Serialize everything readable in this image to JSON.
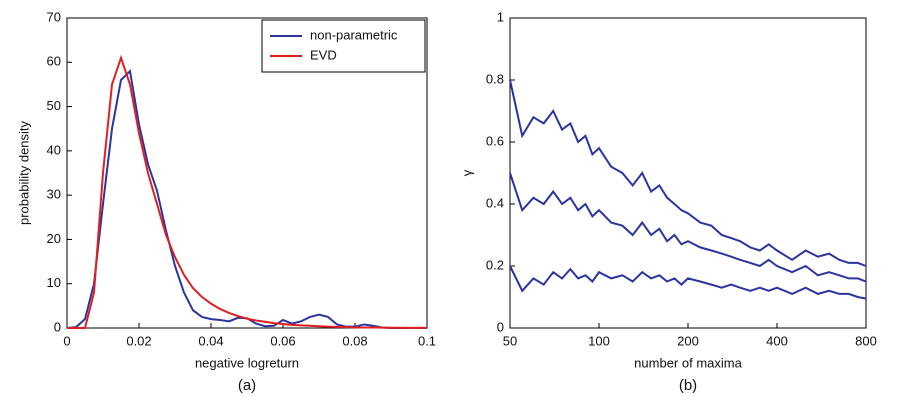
{
  "chart_data": [
    {
      "type": "line",
      "xlabel": "negative logreturn",
      "ylabel": "probability density",
      "caption": "(a)",
      "x": [
        0,
        0.0025,
        0.005,
        0.0075,
        0.01,
        0.0125,
        0.015,
        0.0175,
        0.02,
        0.0225,
        0.025,
        0.0275,
        0.03,
        0.0325,
        0.035,
        0.0375,
        0.04,
        0.0425,
        0.045,
        0.0475,
        0.05,
        0.0525,
        0.055,
        0.0575,
        0.06,
        0.0625,
        0.065,
        0.0675,
        0.07,
        0.0725,
        0.075,
        0.0775,
        0.08,
        0.0825,
        0.085,
        0.0875,
        0.09,
        0.0925,
        0.095,
        0.0975,
        0.1
      ],
      "series": [
        {
          "name": "non-parametric",
          "color": "#2b35a0",
          "values": [
            0,
            0.2,
            2,
            10,
            28,
            45,
            56,
            58,
            46,
            37,
            31,
            22,
            14,
            8,
            4,
            2.5,
            2,
            1.8,
            1.5,
            2.3,
            2.2,
            1,
            0.4,
            0.5,
            1.8,
            1,
            1.5,
            2.5,
            3,
            2.5,
            0.8,
            0.3,
            0.3,
            0.8,
            0.5,
            0.1,
            0,
            0,
            0,
            0,
            0
          ]
        },
        {
          "name": "EVD",
          "color": "#e02020",
          "values": [
            0,
            0,
            0,
            8,
            35,
            55,
            61,
            55,
            44,
            35,
            28,
            21,
            16,
            12,
            9,
            7,
            5.5,
            4.3,
            3.4,
            2.7,
            2.1,
            1.7,
            1.4,
            1.1,
            0.9,
            0.7,
            0.6,
            0.5,
            0.4,
            0.3,
            0.25,
            0.2,
            0.15,
            0.12,
            0.1,
            0.08,
            0.06,
            0.05,
            0.04,
            0.03,
            0.02
          ]
        }
      ],
      "xlim": [
        0,
        0.1
      ],
      "ylim": [
        0,
        70
      ],
      "xticks": [
        0,
        0.02,
        0.04,
        0.06,
        0.08,
        0.1
      ],
      "yticks": [
        0,
        10,
        20,
        30,
        40,
        50,
        60,
        70
      ],
      "legend": "upper right"
    },
    {
      "type": "line",
      "xlabel": "number of maxima",
      "ylabel": "γ",
      "caption": "(b)",
      "log_x": true,
      "x": [
        50,
        55,
        60,
        65,
        70,
        75,
        80,
        85,
        90,
        95,
        100,
        110,
        120,
        130,
        140,
        150,
        160,
        170,
        180,
        190,
        200,
        220,
        240,
        260,
        280,
        300,
        325,
        350,
        375,
        400,
        450,
        500,
        550,
        600,
        650,
        700,
        750,
        800
      ],
      "series": [
        {
          "color": "#2b35a0",
          "values": [
            0.8,
            0.62,
            0.68,
            0.66,
            0.7,
            0.64,
            0.66,
            0.6,
            0.62,
            0.56,
            0.58,
            0.52,
            0.5,
            0.46,
            0.5,
            0.44,
            0.46,
            0.42,
            0.4,
            0.38,
            0.37,
            0.34,
            0.33,
            0.3,
            0.29,
            0.28,
            0.26,
            0.25,
            0.27,
            0.25,
            0.22,
            0.25,
            0.23,
            0.24,
            0.22,
            0.21,
            0.21,
            0.2
          ]
        },
        {
          "color": "#2b35a0",
          "values": [
            0.5,
            0.38,
            0.42,
            0.4,
            0.44,
            0.4,
            0.42,
            0.38,
            0.4,
            0.36,
            0.38,
            0.34,
            0.33,
            0.3,
            0.34,
            0.3,
            0.32,
            0.28,
            0.3,
            0.27,
            0.28,
            0.26,
            0.25,
            0.24,
            0.23,
            0.22,
            0.21,
            0.2,
            0.22,
            0.2,
            0.18,
            0.2,
            0.17,
            0.18,
            0.17,
            0.16,
            0.16,
            0.15
          ]
        },
        {
          "color": "#2b35a0",
          "values": [
            0.2,
            0.12,
            0.16,
            0.14,
            0.18,
            0.16,
            0.19,
            0.16,
            0.17,
            0.15,
            0.18,
            0.16,
            0.17,
            0.15,
            0.18,
            0.16,
            0.17,
            0.15,
            0.16,
            0.14,
            0.16,
            0.15,
            0.14,
            0.13,
            0.14,
            0.13,
            0.12,
            0.13,
            0.12,
            0.13,
            0.11,
            0.13,
            0.11,
            0.12,
            0.11,
            0.11,
            0.1,
            0.095
          ]
        }
      ],
      "xlim": [
        50,
        800
      ],
      "ylim": [
        0,
        1
      ],
      "xticks": [
        50,
        100,
        200,
        400,
        800
      ],
      "yticks": [
        0,
        0.2,
        0.4,
        0.6,
        0.8,
        1
      ]
    }
  ]
}
